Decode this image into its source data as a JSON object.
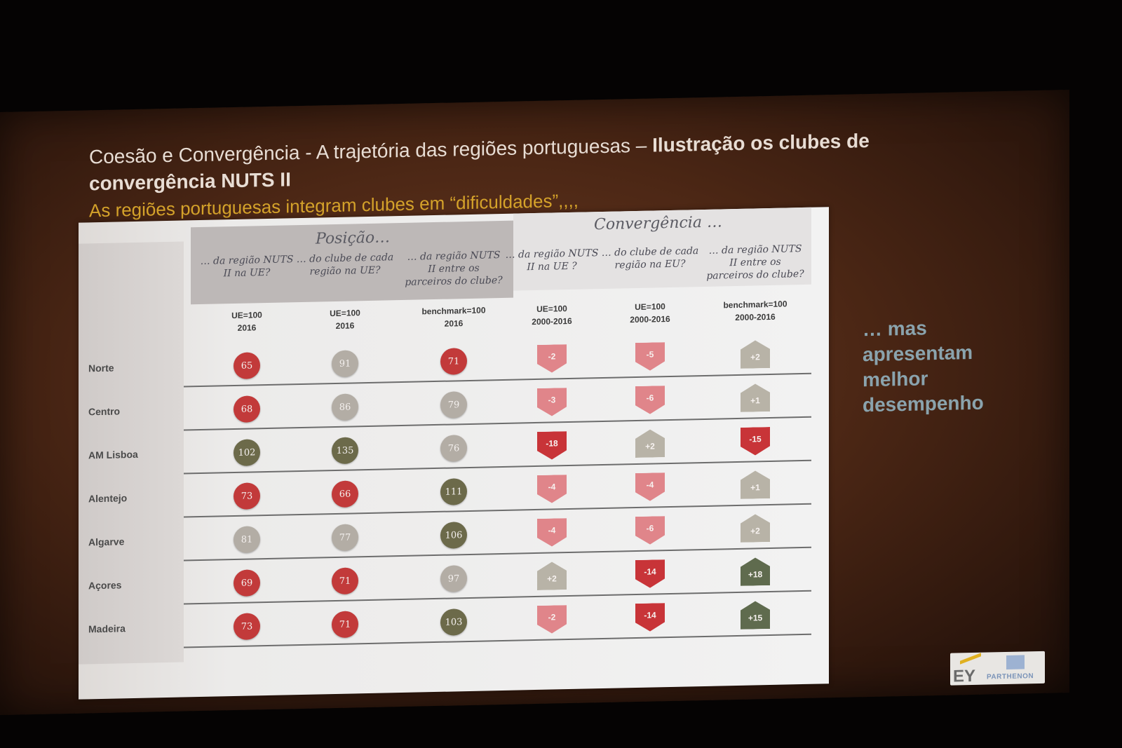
{
  "slide": {
    "title_regular": "Coesão e Convergência - A trajetória das regiões portuguesas – ",
    "title_bold": "Ilustração os clubes de convergência NUTS II",
    "subtitle": "As regiões portuguesas integram clubes em “dificuldades”,,,,",
    "side_note": "… mas apresentam melhor desempenho",
    "logo_ey": "EY",
    "logo_parthenon": "PARTHENON"
  },
  "table": {
    "group_posicao": "Posição…",
    "group_convergencia": "Convergência …",
    "columns": [
      {
        "head": "… da região NUTS II na UE?",
        "unit1": "UE=100",
        "unit2": "2016"
      },
      {
        "head": "… do clube de cada região na UE?",
        "unit1": "UE=100",
        "unit2": "2016"
      },
      {
        "head": "… da região NUTS II entre os parceiros do clube?",
        "unit1": "benchmark=100",
        "unit2": "2016"
      },
      {
        "head": "… da região NUTS II na UE ?",
        "unit1": "UE=100",
        "unit2": "2000-2016"
      },
      {
        "head": "… do clube de cada região na EU?",
        "unit1": "UE=100",
        "unit2": "2000-2016"
      },
      {
        "head": "… da região NUTS II entre os parceiros do clube?",
        "unit1": "benchmark=100",
        "unit2": "2000-2016"
      }
    ],
    "rows": [
      {
        "label": "Norte",
        "pos": [
          {
            "v": "65",
            "c": "red"
          },
          {
            "v": "91",
            "c": "gray"
          },
          {
            "v": "71",
            "c": "red"
          }
        ],
        "conv": [
          {
            "v": "-2",
            "c": "pink",
            "d": "down"
          },
          {
            "v": "-5",
            "c": "pink",
            "d": "down"
          },
          {
            "v": "+2",
            "c": "gray",
            "d": "up"
          }
        ]
      },
      {
        "label": "Centro",
        "pos": [
          {
            "v": "68",
            "c": "red"
          },
          {
            "v": "86",
            "c": "gray"
          },
          {
            "v": "79",
            "c": "gray"
          }
        ],
        "conv": [
          {
            "v": "-3",
            "c": "pink",
            "d": "down"
          },
          {
            "v": "-6",
            "c": "pink",
            "d": "down"
          },
          {
            "v": "+1",
            "c": "gray",
            "d": "up"
          }
        ]
      },
      {
        "label": "AM Lisboa",
        "pos": [
          {
            "v": "102",
            "c": "dark"
          },
          {
            "v": "135",
            "c": "dark"
          },
          {
            "v": "76",
            "c": "gray"
          }
        ],
        "conv": [
          {
            "v": "-18",
            "c": "red",
            "d": "down"
          },
          {
            "v": "+2",
            "c": "gray",
            "d": "up"
          },
          {
            "v": "-15",
            "c": "red",
            "d": "down"
          }
        ]
      },
      {
        "label": "Alentejo",
        "pos": [
          {
            "v": "73",
            "c": "red"
          },
          {
            "v": "66",
            "c": "red"
          },
          {
            "v": "111",
            "c": "dark"
          }
        ],
        "conv": [
          {
            "v": "-4",
            "c": "pink",
            "d": "down"
          },
          {
            "v": "-4",
            "c": "pink",
            "d": "down"
          },
          {
            "v": "+1",
            "c": "gray",
            "d": "up"
          }
        ]
      },
      {
        "label": "Algarve",
        "pos": [
          {
            "v": "81",
            "c": "gray"
          },
          {
            "v": "77",
            "c": "gray"
          },
          {
            "v": "106",
            "c": "dark"
          }
        ],
        "conv": [
          {
            "v": "-4",
            "c": "pink",
            "d": "down"
          },
          {
            "v": "-6",
            "c": "pink",
            "d": "down"
          },
          {
            "v": "+2",
            "c": "gray",
            "d": "up"
          }
        ]
      },
      {
        "label": "Açores",
        "pos": [
          {
            "v": "69",
            "c": "red"
          },
          {
            "v": "71",
            "c": "red"
          },
          {
            "v": "97",
            "c": "gray"
          }
        ],
        "conv": [
          {
            "v": "+2",
            "c": "gray",
            "d": "up"
          },
          {
            "v": "-14",
            "c": "red",
            "d": "down"
          },
          {
            "v": "+18",
            "c": "dark",
            "d": "up"
          }
        ]
      },
      {
        "label": "Madeira",
        "pos": [
          {
            "v": "73",
            "c": "red"
          },
          {
            "v": "71",
            "c": "red"
          },
          {
            "v": "103",
            "c": "dark"
          }
        ],
        "conv": [
          {
            "v": "-2",
            "c": "pink",
            "d": "down"
          },
          {
            "v": "-14",
            "c": "red",
            "d": "down"
          },
          {
            "v": "+15",
            "c": "dark",
            "d": "up"
          }
        ]
      }
    ]
  }
}
